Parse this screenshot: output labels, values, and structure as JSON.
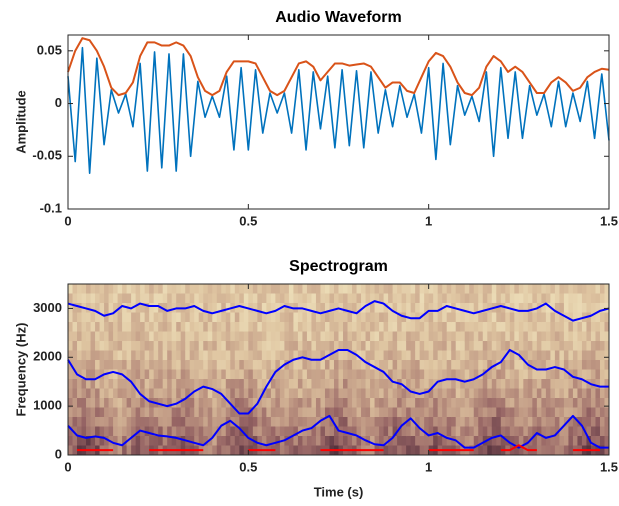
{
  "chart_data": [
    {
      "type": "line",
      "title": "Audio Waveform",
      "ylabel": "Amplitude",
      "xlim": [
        0,
        1.5
      ],
      "xticks": [
        0,
        0.5,
        1,
        1.5
      ],
      "ylim": [
        -0.1,
        0.065
      ],
      "yticks": [
        -0.1,
        -0.05,
        0,
        0.05
      ],
      "x": [
        0,
        0.02,
        0.04,
        0.06,
        0.08,
        0.1,
        0.12,
        0.14,
        0.16,
        0.18,
        0.2,
        0.22,
        0.24,
        0.26,
        0.28,
        0.3,
        0.32,
        0.34,
        0.36,
        0.38,
        0.4,
        0.42,
        0.44,
        0.46,
        0.48,
        0.5,
        0.52,
        0.54,
        0.56,
        0.58,
        0.6,
        0.62,
        0.64,
        0.66,
        0.68,
        0.7,
        0.72,
        0.74,
        0.76,
        0.78,
        0.8,
        0.82,
        0.84,
        0.86,
        0.88,
        0.9,
        0.92,
        0.94,
        0.96,
        0.98,
        1,
        1.02,
        1.04,
        1.06,
        1.08,
        1.1,
        1.12,
        1.14,
        1.16,
        1.18,
        1.2,
        1.22,
        1.24,
        1.26,
        1.28,
        1.3,
        1.32,
        1.34,
        1.36,
        1.38,
        1.4,
        1.42,
        1.44,
        1.46,
        1.48,
        1.5
      ],
      "series": [
        {
          "color": "#0072BD",
          "values": [
            0.026,
            -0.055,
            0.053,
            -0.066,
            0.043,
            -0.039,
            0.013,
            -0.009,
            0.009,
            -0.022,
            0.038,
            -0.064,
            0.049,
            -0.061,
            0.047,
            -0.064,
            0.047,
            -0.05,
            0.021,
            -0.013,
            0.007,
            -0.013,
            0.026,
            -0.044,
            0.034,
            -0.044,
            0.032,
            -0.028,
            0.01,
            -0.009,
            0.01,
            -0.028,
            0.032,
            -0.044,
            0.03,
            -0.024,
            0.026,
            -0.042,
            0.032,
            -0.04,
            0.031,
            -0.042,
            0.03,
            -0.028,
            0.013,
            -0.022,
            0.017,
            -0.013,
            0.009,
            -0.028,
            0.034,
            -0.053,
            0.038,
            -0.039,
            0.017,
            -0.011,
            0.007,
            -0.017,
            0.03,
            -0.05,
            0.034,
            -0.033,
            0.03,
            -0.033,
            0.017,
            -0.011,
            0.009,
            -0.022,
            0.021,
            -0.022,
            0.01,
            -0.017,
            0.021,
            -0.033,
            0.028,
            -0.035
          ]
        },
        {
          "color": "#D95319",
          "values": [
            0.03,
            0.05,
            0.062,
            0.06,
            0.05,
            0.035,
            0.015,
            0.008,
            0.01,
            0.02,
            0.045,
            0.058,
            0.058,
            0.055,
            0.055,
            0.058,
            0.055,
            0.045,
            0.025,
            0.012,
            0.008,
            0.012,
            0.03,
            0.04,
            0.04,
            0.04,
            0.038,
            0.025,
            0.012,
            0.008,
            0.012,
            0.025,
            0.038,
            0.04,
            0.035,
            0.022,
            0.03,
            0.038,
            0.038,
            0.036,
            0.037,
            0.038,
            0.035,
            0.025,
            0.015,
            0.02,
            0.02,
            0.012,
            0.01,
            0.025,
            0.04,
            0.048,
            0.045,
            0.035,
            0.02,
            0.01,
            0.008,
            0.015,
            0.035,
            0.045,
            0.04,
            0.03,
            0.035,
            0.03,
            0.02,
            0.01,
            0.01,
            0.02,
            0.025,
            0.02,
            0.012,
            0.015,
            0.025,
            0.03,
            0.033,
            0.032
          ]
        }
      ]
    },
    {
      "type": "line",
      "title": "Spectrogram",
      "ylabel": "Frequency (Hz)",
      "xlabel": "Time (s)",
      "xlim": [
        0,
        1.5
      ],
      "xticks": [
        0,
        0.5,
        1,
        1.5
      ],
      "ylim": [
        0,
        3500
      ],
      "yticks": [
        0,
        1000,
        2000,
        3000
      ],
      "x": [
        0,
        0.025,
        0.05,
        0.075,
        0.1,
        0.125,
        0.15,
        0.175,
        0.2,
        0.225,
        0.25,
        0.275,
        0.3,
        0.325,
        0.35,
        0.375,
        0.4,
        0.425,
        0.45,
        0.475,
        0.5,
        0.525,
        0.55,
        0.575,
        0.6,
        0.625,
        0.65,
        0.675,
        0.7,
        0.725,
        0.75,
        0.775,
        0.8,
        0.825,
        0.85,
        0.875,
        0.9,
        0.925,
        0.95,
        0.975,
        1,
        1.025,
        1.05,
        1.075,
        1.1,
        1.125,
        1.15,
        1.175,
        1.2,
        1.225,
        1.25,
        1.275,
        1.3,
        1.325,
        1.35,
        1.375,
        1.4,
        1.425,
        1.45,
        1.475,
        1.5
      ],
      "series": [
        {
          "color": "#0000FF",
          "values": [
            600,
            400,
            350,
            380,
            350,
            250,
            200,
            350,
            500,
            450,
            400,
            380,
            350,
            300,
            250,
            200,
            350,
            600,
            700,
            550,
            350,
            250,
            200,
            250,
            300,
            400,
            500,
            550,
            700,
            800,
            500,
            450,
            400,
            300,
            220,
            200,
            350,
            600,
            750,
            550,
            400,
            450,
            350,
            300,
            150,
            150,
            250,
            350,
            400,
            250,
            150,
            250,
            450,
            350,
            400,
            600,
            800,
            600,
            250,
            150,
            150
          ]
        },
        {
          "color": "#0000FF",
          "values": [
            1950,
            1650,
            1550,
            1550,
            1650,
            1700,
            1650,
            1500,
            1250,
            1100,
            1050,
            1000,
            1050,
            1150,
            1300,
            1400,
            1350,
            1250,
            1050,
            850,
            850,
            1050,
            1400,
            1700,
            1850,
            1950,
            2000,
            1950,
            1950,
            2050,
            2150,
            2150,
            2050,
            1900,
            1800,
            1700,
            1500,
            1450,
            1300,
            1250,
            1300,
            1500,
            1550,
            1550,
            1500,
            1550,
            1650,
            1800,
            1900,
            2150,
            2050,
            1850,
            1750,
            1750,
            1800,
            1750,
            1600,
            1550,
            1450,
            1400,
            1400
          ]
        },
        {
          "color": "#0000FF",
          "values": [
            3100,
            3050,
            3000,
            2950,
            2850,
            2900,
            3050,
            3000,
            3100,
            3050,
            3050,
            2950,
            3000,
            3000,
            3050,
            2950,
            2900,
            2950,
            3000,
            3050,
            3000,
            2950,
            2900,
            2950,
            3050,
            3000,
            3000,
            2950,
            2900,
            2950,
            3000,
            2950,
            2900,
            3050,
            3150,
            3100,
            2950,
            2850,
            2800,
            2800,
            2950,
            2950,
            3050,
            3000,
            2950,
            2900,
            2950,
            3000,
            3050,
            3000,
            2950,
            2950,
            3000,
            3100,
            2950,
            2850,
            2750,
            2800,
            2850,
            2950,
            3000
          ]
        },
        {
          "color": "#FF0000",
          "values": [
            null,
            100,
            100,
            100,
            100,
            100,
            null,
            null,
            null,
            100,
            100,
            100,
            100,
            100,
            100,
            100,
            null,
            null,
            null,
            null,
            100,
            100,
            100,
            100,
            null,
            null,
            null,
            null,
            100,
            100,
            100,
            100,
            100,
            100,
            100,
            100,
            null,
            null,
            null,
            null,
            100,
            100,
            100,
            100,
            100,
            100,
            null,
            null,
            100,
            100,
            200,
            100,
            100,
            null,
            null,
            null,
            100,
            100,
            100,
            100,
            null
          ]
        }
      ]
    }
  ]
}
